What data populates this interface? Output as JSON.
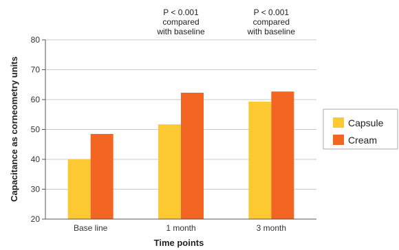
{
  "chart_data": {
    "type": "bar",
    "title": "",
    "xlabel": "Time points",
    "ylabel": "Capacitance as corneometry units",
    "categories": [
      "Base line",
      "1 month",
      "3 month"
    ],
    "series": [
      {
        "name": "Capsule",
        "color": "#fdc932",
        "values": [
          40,
          51.7,
          59.3
        ]
      },
      {
        "name": "Cream",
        "color": "#f26522",
        "values": [
          48.5,
          62.3,
          62.7
        ]
      }
    ],
    "ylim": [
      20,
      80
    ],
    "yticks": [
      20,
      30,
      40,
      50,
      60,
      70,
      80
    ],
    "grid": true,
    "legend_position": "right",
    "annotations": [
      {
        "category_index": 1,
        "lines": [
          "P < 0.001",
          "compared",
          "with baseline"
        ]
      },
      {
        "category_index": 2,
        "lines": [
          "P < 0.001",
          "compared",
          "with baseline"
        ]
      }
    ],
    "colors": {
      "grid": "#c9c9c9",
      "axis": "#555555",
      "legend_border": "#aaaaaa"
    }
  }
}
